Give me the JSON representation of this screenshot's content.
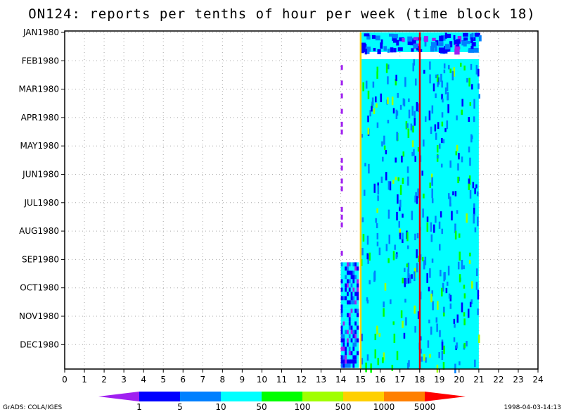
{
  "chart_data": {
    "type": "heatmap",
    "title": "ON124: reports per tenths of hour per week (time block 18)",
    "x_range": [
      0,
      24
    ],
    "x_ticks": [
      "0",
      "1",
      "2",
      "3",
      "4",
      "5",
      "6",
      "7",
      "8",
      "9",
      "10",
      "11",
      "12",
      "13",
      "14",
      "15",
      "16",
      "17",
      "18",
      "19",
      "20",
      "21",
      "22",
      "23",
      "24"
    ],
    "y_ticks": [
      "JAN1980",
      "FEB1980",
      "MAR1980",
      "APR1980",
      "MAY1980",
      "JUN1980",
      "JUL1980",
      "AUG1980",
      "SEP1980",
      "OCT1980",
      "NOV1980",
      "DEC1980"
    ],
    "grid": true,
    "dominant_band": {
      "x_start": 15.0,
      "x_end": 21.0,
      "class": "10-50",
      "color": "#00ffff"
    },
    "highlight_lines": [
      {
        "x": 15.0,
        "color": "#ffd000"
      },
      {
        "x": 18.0,
        "color": "#e00000"
      }
    ],
    "sparse_region": {
      "x_start": 14.0,
      "x_end": 15.0,
      "dense_from": "SEP1980"
    },
    "colorbar": {
      "labels": [
        "1",
        "5",
        "10",
        "50",
        "100",
        "500",
        "1000",
        "5000"
      ],
      "colors": [
        "#a020f0",
        "#0000ff",
        "#0080ff",
        "#00ffff",
        "#00ff00",
        "#a0ff00",
        "#ffd000",
        "#ff8000",
        "#ff0000"
      ]
    }
  },
  "footer": {
    "left": "GrADS: COLA/IGES",
    "right": "1998-04-03-14:13"
  }
}
